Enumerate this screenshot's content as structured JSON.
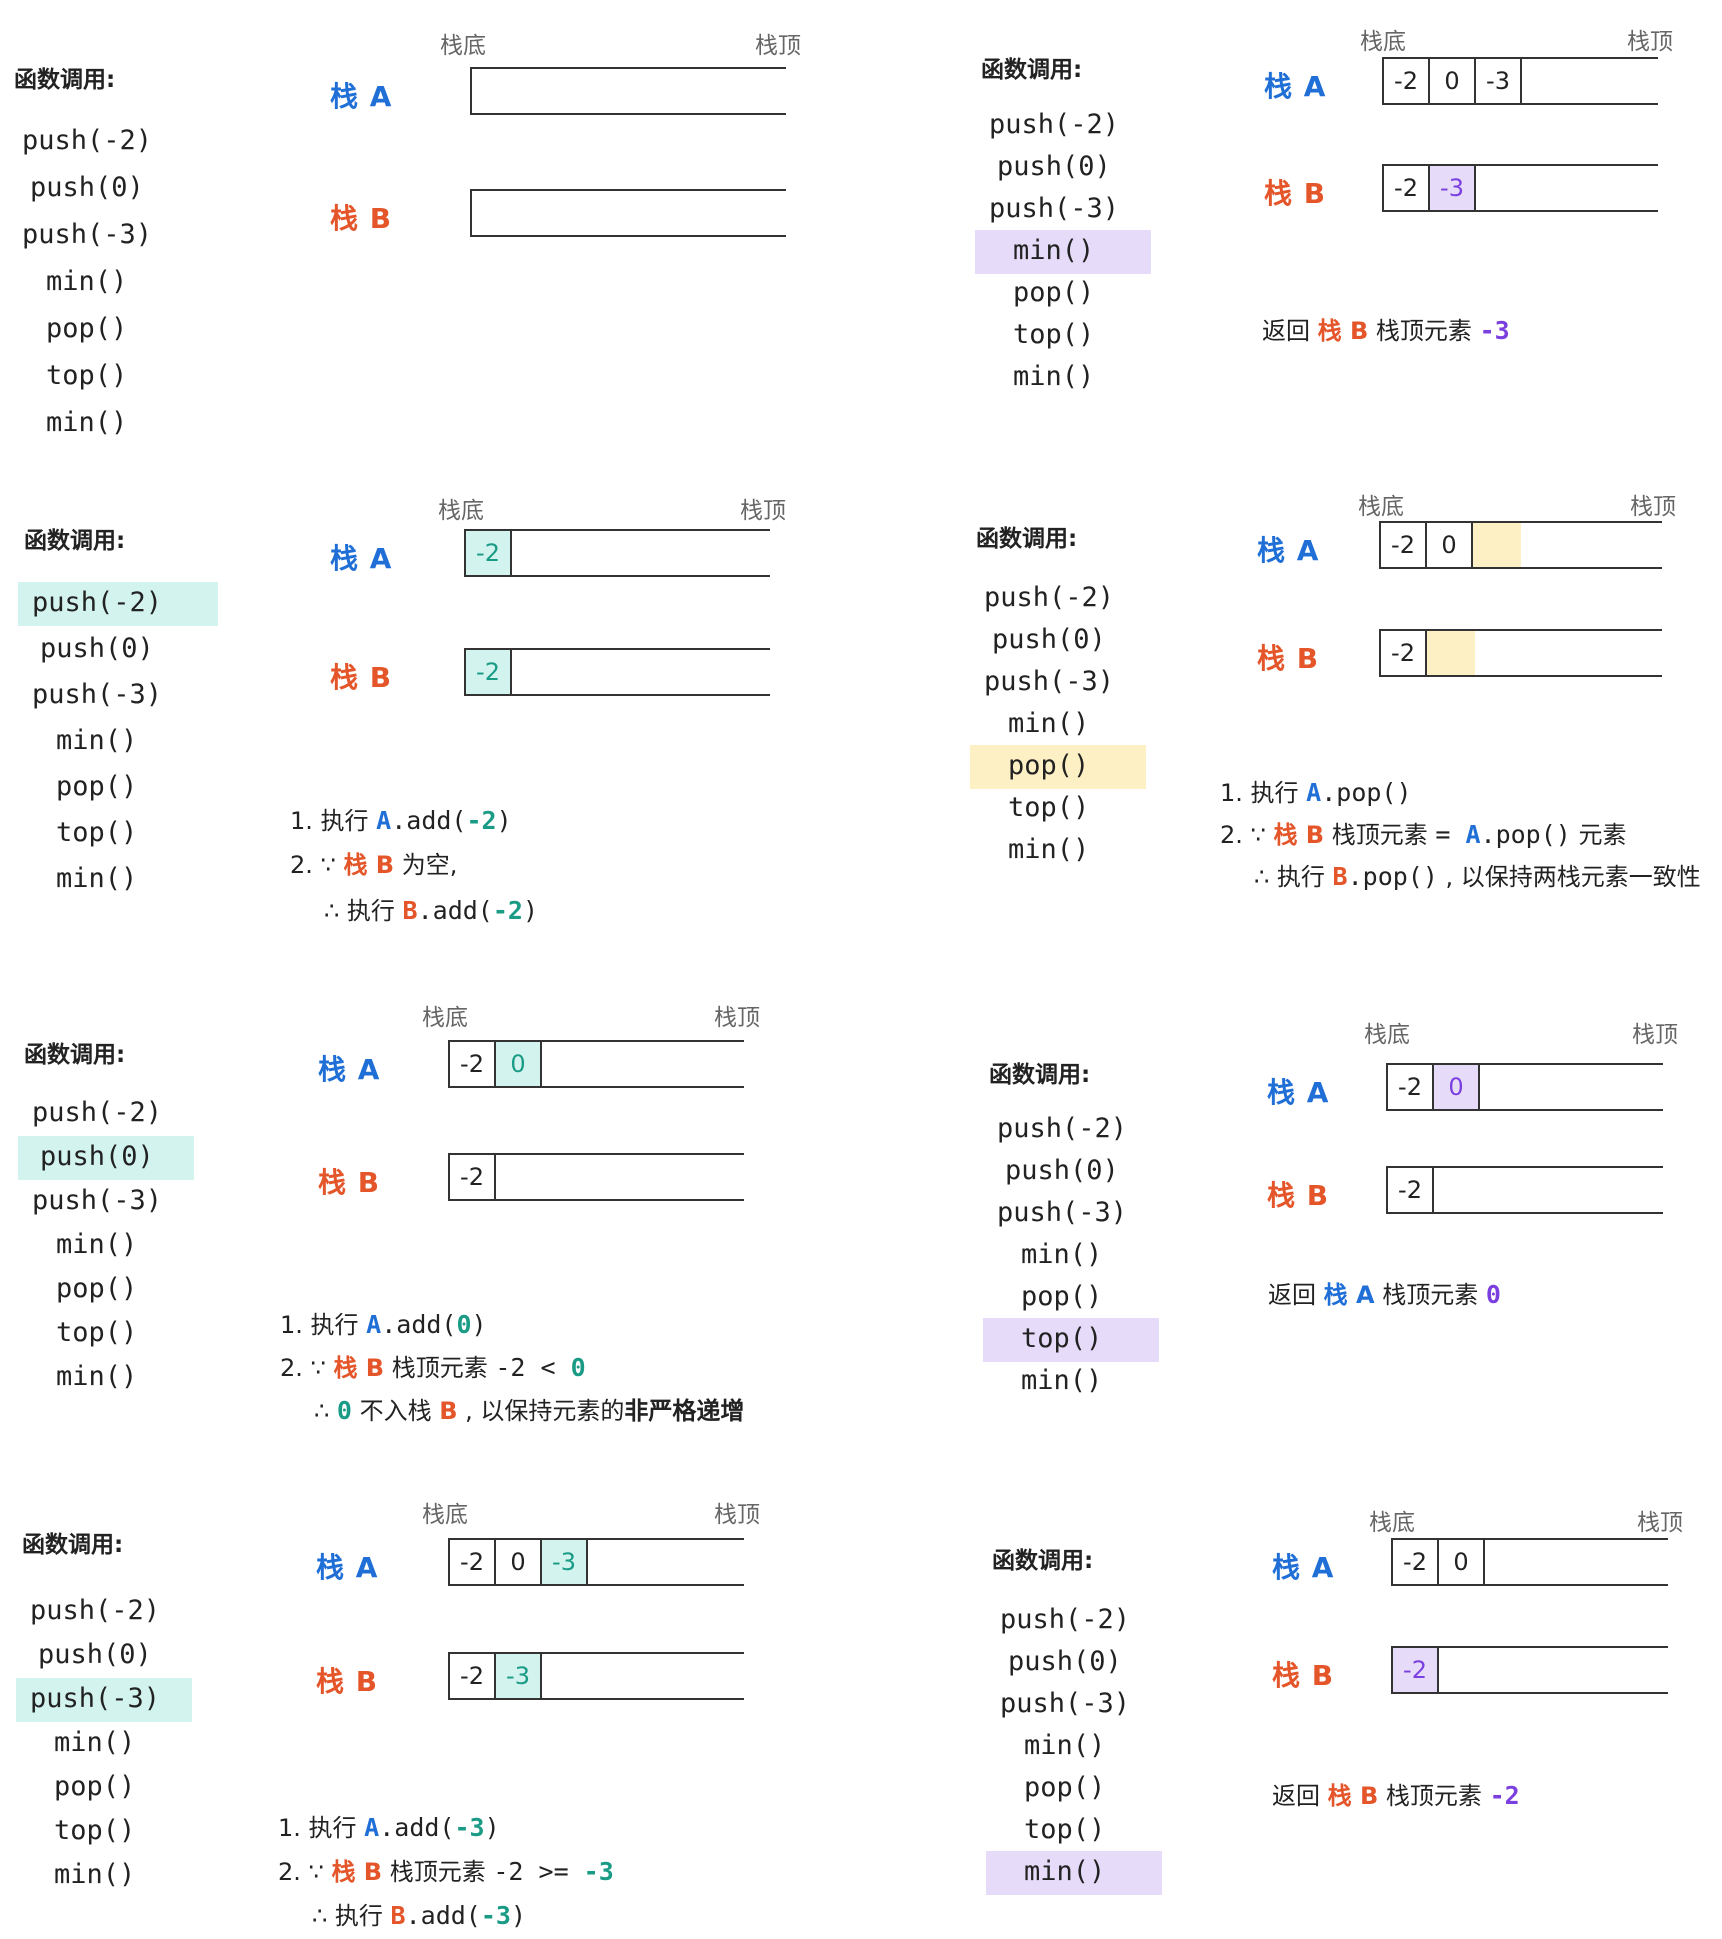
{
  "common": {
    "calls_title": "函数调用:",
    "calls": [
      "push(-2)",
      "push(0)",
      "push(-3)",
      "min()",
      "pop()",
      "top()",
      "min()"
    ],
    "bottom_label": "栈底",
    "top_label": "栈顶",
    "stack_a_label": "栈 A",
    "stack_b_label": "栈 B"
  },
  "colors": {
    "blue": "#1f6fd6",
    "orange": "#e4552a",
    "teal": "#1a9b86",
    "purple": "#7b3fe0",
    "teal_bg": "#d3f3ef",
    "purple_bg": "#e6dcf9",
    "yellow_bg": "#fdf0c4"
  },
  "panel_initial": {
    "a_cells": [],
    "b_cells": []
  },
  "panel_push_neg2": {
    "a_cells": [
      "-2"
    ],
    "b_cells": [
      "-2"
    ],
    "line1_prefix": "1. 执行 ",
    "line1_a": "A",
    "line1_code": ".add(",
    "line1_val": "-2",
    "line1_end": ")",
    "line2_prefix": "2. ∵ ",
    "line2_b": "栈 B",
    "line2_text": " 为空,",
    "line3_prefix": "∴ 执行 ",
    "line3_b": "B",
    "line3_code": ".add(",
    "line3_val": "-2",
    "line3_end": ")"
  },
  "panel_push_0": {
    "a_cells": [
      "-2",
      "0"
    ],
    "b_cells": [
      "-2"
    ],
    "line1_prefix": "1. 执行 ",
    "line1_a": "A",
    "line1_code": ".add(",
    "line1_val": "0",
    "line1_end": ")",
    "line2_prefix": "2. ∵ ",
    "line2_b": "栈 B",
    "line2_text": " 栈顶元素 ",
    "line2_code": "-2 < ",
    "line2_val": "0",
    "line3_prefix": "∴ ",
    "line3_val": "0",
    "line3_text": " 不入栈 ",
    "line3_b": "B",
    "line3_text2": " , 以保持元素的",
    "line3_bold": "非严格递增"
  },
  "panel_push_neg3": {
    "a_cells": [
      "-2",
      "0",
      "-3"
    ],
    "b_cells": [
      "-2",
      "-3"
    ],
    "line1_prefix": "1. 执行 ",
    "line1_a": "A",
    "line1_code": ".add(",
    "line1_val": "-3",
    "line1_end": ")",
    "line2_prefix": "2. ∵ ",
    "line2_b": "栈 B",
    "line2_text": " 栈顶元素 ",
    "line2_code": "-2 >= ",
    "line2_val": "-3",
    "line3_prefix": "∴ 执行 ",
    "line3_b": "B",
    "line3_code": ".add(",
    "line3_val": "-3",
    "line3_end": ")"
  },
  "panel_min1": {
    "a_cells": [
      "-2",
      "0",
      "-3"
    ],
    "b_cells": [
      "-2",
      "-3"
    ],
    "ret_prefix": "返回 ",
    "ret_b": "栈 B",
    "ret_text": " 栈顶元素 ",
    "ret_val": "-3"
  },
  "panel_pop": {
    "a_cells": [
      "-2",
      "0"
    ],
    "b_cells": [
      "-2"
    ],
    "line1_prefix": "1. 执行 ",
    "line1_a": "A",
    "line1_code": ".pop()",
    "line2_prefix": "2. ∵ ",
    "line2_b": "栈 B",
    "line2_text": " 栈顶元素 ",
    "line2_eq": " = ",
    "line2_a": "A",
    "line2_code": ".pop()",
    "line2_text2": " 元素",
    "line3_prefix": "∴ 执行 ",
    "line3_b": "B",
    "line3_code": ".pop()",
    "line3_text": " , 以保持两栈元素一致性"
  },
  "panel_top": {
    "a_cells": [
      "-2",
      "0"
    ],
    "b_cells": [
      "-2"
    ],
    "ret_prefix": "返回 ",
    "ret_a": "栈 A",
    "ret_text": " 栈顶元素 ",
    "ret_val": "0"
  },
  "panel_min2": {
    "a_cells": [
      "-2",
      "0"
    ],
    "b_cells": [
      "-2"
    ],
    "ret_prefix": "返回 ",
    "ret_b": "栈 B",
    "ret_text": " 栈顶元素 ",
    "ret_val": "-2"
  }
}
